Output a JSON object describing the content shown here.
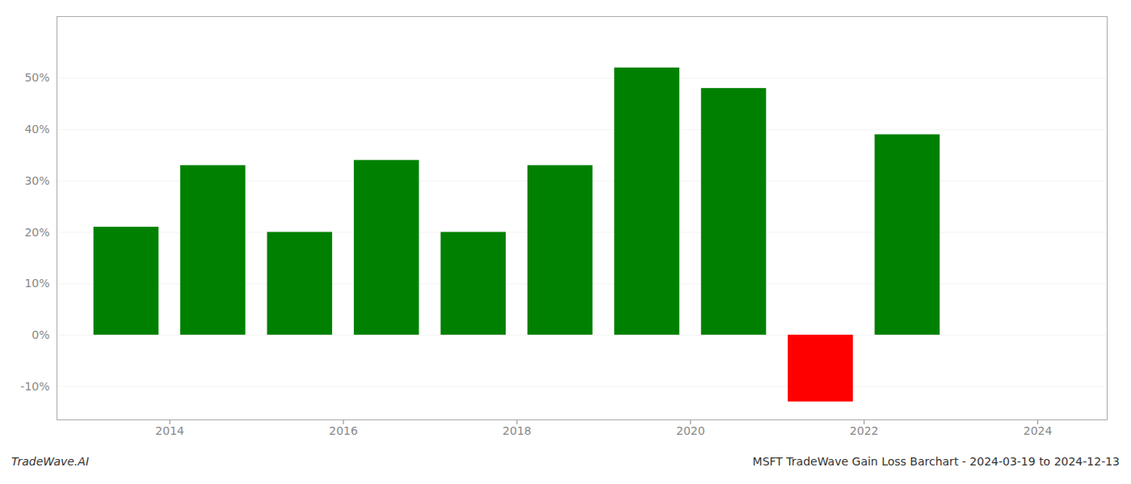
{
  "chart_data": {
    "type": "bar",
    "title": "MSFT TradeWave Gain Loss Barchart - 2024-03-19 to 2024-12-13",
    "annotations": [
      "TradeWave.AI"
    ],
    "x": [
      2013.5,
      2014.5,
      2015.5,
      2016.5,
      2017.5,
      2018.5,
      2019.5,
      2020.5,
      2021.5,
      2022.5
    ],
    "values": [
      0.21,
      0.33,
      0.2,
      0.34,
      0.2,
      0.33,
      0.52,
      0.48,
      -0.13,
      0.39
    ],
    "colors": [
      "#008000",
      "#008000",
      "#008000",
      "#008000",
      "#008000",
      "#008000",
      "#008000",
      "#008000",
      "#ff0000",
      "#008000"
    ],
    "xlim": [
      2012.7,
      2024.8
    ],
    "xticks": [
      2014,
      2016,
      2018,
      2020,
      2022,
      2024
    ],
    "ylim": [
      -0.165,
      0.62
    ],
    "yticks": [
      {
        "value": -0.1,
        "label": "-10%"
      },
      {
        "value": 0.0,
        "label": "0%"
      },
      {
        "value": 0.1,
        "label": "10%"
      },
      {
        "value": 0.2,
        "label": "20%"
      },
      {
        "value": 0.3,
        "label": "30%"
      },
      {
        "value": 0.4,
        "label": "40%"
      },
      {
        "value": 0.5,
        "label": "50%"
      }
    ],
    "grid": true
  }
}
